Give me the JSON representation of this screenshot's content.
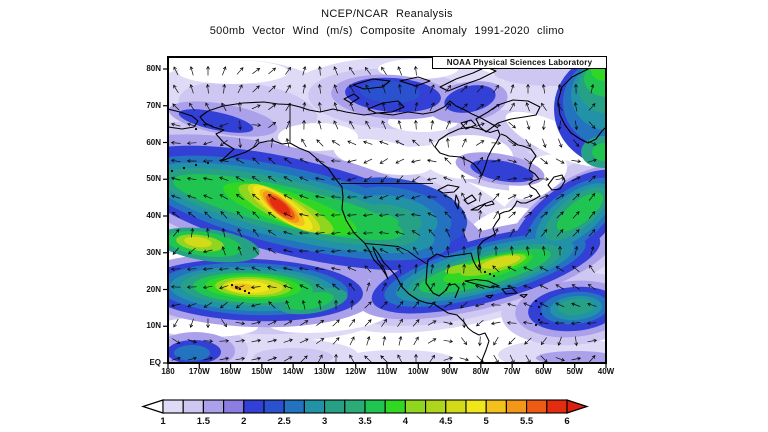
{
  "title": {
    "line1": "NCEP/NCAR Reanalysis",
    "line2": "500mb Vector Wind (m/s) Composite Anomaly 1991-2020 climo"
  },
  "watermark": "NOAA Physical Sciences Laboratory",
  "axes": {
    "lat_labels": [
      "80N",
      "70N",
      "60N",
      "50N",
      "40N",
      "30N",
      "20N",
      "10N",
      "EQ"
    ],
    "lon_labels": [
      "180",
      "170W",
      "160W",
      "150W",
      "140W",
      "130W",
      "120W",
      "110W",
      "100W",
      "90W",
      "80W",
      "70W",
      "60W",
      "50W",
      "40W"
    ]
  },
  "colorbar": {
    "tick_values": [
      "1",
      "1.5",
      "2",
      "2.5",
      "3",
      "3.5",
      "4",
      "4.5",
      "5",
      "5.5",
      "6"
    ],
    "cell_colors": [
      "#DFDBF6",
      "#CEC7F2",
      "#ABA0EA",
      "#8B7DE2",
      "#3340D6",
      "#2B52CE",
      "#2473C0",
      "#2292A6",
      "#27A186",
      "#2CAB79",
      "#1FC550",
      "#30D824",
      "#90D61E",
      "#ADD61C",
      "#D2DA1A",
      "#F0E61A",
      "#F3C11C",
      "#F2971A",
      "#ED5B15",
      "#E32D10"
    ],
    "left_arrow_color": "#FFFFFF",
    "right_arrow_color": "#DD1F0F",
    "outline_color": "#000000"
  },
  "chart_data": {
    "type": "heatmap",
    "subtype": "filled-contour-map-with-vectors",
    "title": "NCEP/NCAR Reanalysis",
    "variable": "500mb Vector Wind (m/s) Composite Anomaly",
    "climatology": "1991-2020 climo",
    "source_label": "NOAA Physical Sciences Laboratory",
    "lon_range": [
      "180",
      "40W"
    ],
    "lat_range": [
      "EQ",
      "~83N"
    ],
    "contour_levels_start": 1,
    "contour_levels_end": 6,
    "contour_interval": 0.25,
    "units": "m/s",
    "features": [
      {
        "name": "NE Pacific jet anomaly maximum",
        "lon": "143W",
        "lat": "42N",
        "approx_max": "6+"
      },
      {
        "name": "Subtropical Pacific maximum near Hawaii",
        "lon": "158W",
        "lat": "20N",
        "approx_max": "5.25"
      },
      {
        "name": "Far-west secondary maximum",
        "lon": "170W",
        "lat": "33N",
        "approx_max": "4.75"
      },
      {
        "name": "Gulf of Mexico / Bahamas band maximum",
        "lon": "75W",
        "lat": "28N",
        "approx_max": "4.75"
      },
      {
        "name": "US interior green-teal anomaly",
        "lon": "110W",
        "lat": "40N",
        "approx_max": "3.5"
      },
      {
        "name": "Greenland-edge green band",
        "lon": "42W",
        "lat": "75N",
        "approx_max": "4"
      },
      {
        "name": "NW Atlantic SW-NE green band",
        "lon": "50W",
        "lat": "38N",
        "approx_max": "3.5"
      },
      {
        "name": "Venezuela / tropical Atlantic blob",
        "lon": "62W",
        "lat": "12N",
        "approx_max": "3.25"
      }
    ]
  },
  "map_geometry": {
    "whites": [
      [
        65,
        15,
        55,
        12,
        0
      ],
      [
        250,
        12,
        40,
        10,
        0
      ],
      [
        255,
        65,
        35,
        10,
        0
      ],
      [
        300,
        100,
        45,
        22,
        0
      ],
      [
        388,
        82,
        55,
        16,
        25
      ],
      [
        150,
        80,
        40,
        14,
        0
      ],
      [
        215,
        100,
        50,
        16,
        10
      ],
      [
        60,
        205,
        75,
        10,
        3
      ],
      [
        160,
        262,
        60,
        13,
        -5
      ],
      [
        40,
        270,
        50,
        10,
        0
      ],
      [
        335,
        175,
        40,
        22,
        -20
      ],
      [
        268,
        195,
        28,
        12,
        -5
      ],
      [
        370,
        120,
        32,
        18,
        -30
      ]
    ],
    "blobs": [
      [
        70,
        45,
        95,
        42,
        0,
        0
      ],
      [
        230,
        45,
        120,
        45,
        0,
        0
      ],
      [
        390,
        55,
        70,
        50,
        0,
        0
      ],
      [
        134,
        150,
        242,
        84,
        14,
        0
      ],
      [
        85,
        233,
        155,
        52,
        2,
        0
      ],
      [
        320,
        210,
        165,
        52,
        -15,
        0
      ],
      [
        395,
        170,
        105,
        55,
        -38,
        0
      ],
      [
        120,
        298,
        70,
        16,
        0,
        0
      ],
      [
        230,
        302,
        55,
        9,
        0,
        0
      ],
      [
        400,
        298,
        70,
        16,
        0,
        0
      ],
      [
        80,
        52,
        70,
        26,
        8,
        1
      ],
      [
        225,
        42,
        85,
        30,
        3,
        1
      ],
      [
        335,
        75,
        55,
        22,
        0,
        1
      ],
      [
        385,
        15,
        60,
        14,
        0,
        1
      ],
      [
        132,
        151,
        218,
        70,
        14,
        1
      ],
      [
        85,
        233,
        140,
        44,
        2,
        1
      ],
      [
        319,
        211,
        148,
        45,
        -15,
        1
      ],
      [
        398,
        167,
        95,
        48,
        -38,
        1
      ],
      [
        330,
        110,
        60,
        22,
        10,
        1
      ],
      [
        405,
        252,
        72,
        36,
        -5,
        1
      ],
      [
        28,
        293,
        52,
        26,
        0,
        1
      ],
      [
        125,
        300,
        40,
        9,
        0,
        1
      ],
      [
        55,
        62,
        55,
        15,
        10,
        2
      ],
      [
        225,
        40,
        62,
        22,
        4,
        2
      ],
      [
        300,
        45,
        40,
        20,
        -10,
        2
      ],
      [
        130,
        151,
        196,
        58,
        14,
        2
      ],
      [
        85,
        233,
        125,
        37,
        2,
        2
      ],
      [
        318,
        212,
        133,
        38,
        -15,
        2
      ],
      [
        402,
        166,
        80,
        38,
        -38,
        2
      ],
      [
        332,
        112,
        45,
        15,
        10,
        2
      ],
      [
        405,
        252,
        58,
        28,
        -5,
        2
      ],
      [
        27,
        294,
        40,
        19,
        0,
        2
      ],
      [
        408,
        301,
        40,
        7,
        0,
        2
      ],
      [
        225,
        38,
        48,
        17,
        4,
        4
      ],
      [
        48,
        64,
        38,
        9,
        12,
        4
      ],
      [
        302,
        42,
        26,
        13,
        -12,
        4
      ],
      [
        128,
        151,
        177,
        48,
        13.5,
        4
      ],
      [
        85,
        233,
        110,
        31,
        2,
        4
      ],
      [
        318,
        213,
        118,
        32,
        -15,
        4
      ],
      [
        402,
        163,
        70,
        33,
        -38,
        4
      ],
      [
        334,
        114,
        32,
        10,
        10,
        4
      ],
      [
        406,
        252,
        46,
        22,
        -5,
        4
      ],
      [
        26,
        295,
        27,
        12,
        0,
        4
      ],
      [
        448,
        52,
        62,
        58,
        0,
        4
      ],
      [
        222,
        35,
        30,
        11,
        4,
        5
      ],
      [
        230,
        156,
        70,
        34,
        10,
        5
      ],
      [
        126,
        151,
        160,
        39,
        13,
        6
      ],
      [
        85,
        232,
        95,
        26,
        2,
        6
      ],
      [
        317,
        213,
        104,
        26,
        -15,
        6
      ],
      [
        404,
        161,
        56,
        26,
        -38,
        6
      ],
      [
        228,
        158,
        56,
        27,
        10,
        6
      ],
      [
        407,
        251,
        34,
        16,
        -5,
        6
      ],
      [
        445,
        45,
        50,
        46,
        0,
        6
      ],
      [
        24,
        296,
        18,
        8,
        0,
        6
      ],
      [
        124,
        151,
        146,
        32,
        13,
        7
      ],
      [
        85,
        232,
        83,
        22,
        2,
        7
      ],
      [
        317,
        213,
        92,
        22,
        -15,
        7
      ],
      [
        406,
        159,
        46,
        21,
        -38,
        7
      ],
      [
        226,
        160,
        44,
        21,
        10,
        7
      ],
      [
        408,
        251,
        26,
        12,
        -5,
        7
      ],
      [
        443,
        38,
        40,
        36,
        0,
        7
      ],
      [
        122,
        150,
        132,
        26,
        13,
        8
      ],
      [
        85,
        231,
        72,
        18,
        2,
        8
      ],
      [
        317,
        214,
        80,
        18,
        -15,
        8
      ],
      [
        408,
        157,
        38,
        16,
        -38,
        8
      ],
      [
        222,
        162,
        32,
        14,
        10,
        8
      ],
      [
        408,
        250,
        18,
        8,
        -5,
        8
      ],
      [
        442,
        30,
        32,
        27,
        0,
        8
      ],
      [
        435,
        95,
        22,
        16,
        0,
        8
      ],
      [
        40,
        188,
        52,
        16,
        8,
        8
      ],
      [
        145,
        244,
        35,
        12,
        -10,
        8
      ],
      [
        120,
        150,
        118,
        20,
        13,
        10
      ],
      [
        85,
        231,
        60,
        15,
        2,
        10
      ],
      [
        317,
        214,
        68,
        14,
        -15,
        10
      ],
      [
        412,
        155,
        28,
        11,
        -38,
        10
      ],
      [
        215,
        163,
        16,
        6,
        10,
        10
      ],
      [
        440,
        22,
        24,
        18,
        0,
        10
      ],
      [
        437,
        95,
        13,
        9,
        0,
        10
      ],
      [
        36,
        187,
        38,
        12,
        8,
        10
      ],
      [
        142,
        244,
        24,
        8,
        -10,
        10
      ],
      [
        122,
        152,
        70,
        16,
        18,
        11
      ],
      [
        85,
        230,
        48,
        12,
        2,
        11
      ],
      [
        320,
        211,
        46,
        10,
        -15,
        11
      ],
      [
        438,
        14,
        15,
        10,
        0,
        11
      ],
      [
        118,
        152,
        52,
        13,
        25,
        12
      ],
      [
        85,
        230,
        38,
        10,
        2,
        12
      ],
      [
        325,
        208,
        34,
        7.5,
        -14,
        12
      ],
      [
        32,
        186,
        24,
        8,
        8,
        12
      ],
      [
        290,
        212,
        13,
        4,
        -12,
        12
      ],
      [
        116,
        151,
        42,
        11.5,
        32,
        14
      ],
      [
        85,
        230,
        30,
        8,
        2,
        14
      ],
      [
        333,
        205,
        20,
        5,
        -13,
        14
      ],
      [
        30,
        185,
        14,
        5,
        8,
        14
      ],
      [
        115,
        151,
        36,
        10,
        36,
        15
      ],
      [
        80,
        230,
        22,
        6,
        2,
        15
      ],
      [
        114,
        150.5,
        28,
        8.5,
        38,
        16
      ],
      [
        74,
        230,
        12,
        3.5,
        2,
        16
      ],
      [
        113,
        150,
        23,
        7.5,
        40,
        17
      ],
      [
        112.5,
        150,
        18,
        6.5,
        40,
        18
      ],
      [
        112,
        149.5,
        13,
        5,
        40,
        19
      ]
    ],
    "coastlines": [
      "M 37,66 L 45,70 L 56,73 L 48,77 L 56,86 L 66,92 L 53,104 L 64,100 L 78,95 L 88,89 L 91,86 L 100,84 L 106,84 L 114,87 L 122,86 L 131,91 L 141,95 L 148,101 L 153,106 L 160,111 L 167,121 L 174,130 L 175,140 L 174,152 L 178,163 L 186,176 L 196.5,186 L 201,193 L 206,203 L 212,209 L 218,218 L 220,222 L 216,212 L 210,203 L 206,194 L 205,190 L 210,196 L 216,206 L 222,212 L 228,219 L 234,230 L 241,237 L 250,243 L 259,246 L 266,247 L 272,251 L 280,256 L 289,258 L 296,265 L 300,271 L 305,275 L 311,278 L 317,276 L 321,284 L 318,293 L 314,303 L 313,306",
      "M 37,66 L 32,60 L 40,54 L 55,49 L 75,46",
      "M 75,46 L 96,45 L 110,47 L 122,47.5 L 132,50 L 141,53 L 152,55 L 165,52 L 178,55 L 196,58 L 210,56 L 225,58 L 240,55 L 255,57 L 266,55 L 276,50 L 282,44 L 288,49 L 295,52 L 304,57 L 313,61 L 322,66 L 330,71",
      "M 330,73 L 322,75.5 L 312,72 L 302,70 L 291,72 L 280,77 L 271,83 L 267,90 L 272,96 L 281,99 L 292,100 L 301,104 L 306,107 L 311,113 L 314,118 L 317,110 L 320,100 L 324,92 L 329,84 L 332,78 Z",
      "M 287,241 L 291,231 L 287,227 L 281,228 L 277,234 L 271,239 L 265,236 L 258,226 L 259,211 L 260,203 L 269,197 L 277,200 L 284,199 L 291,198 L 297,197 L 303,196 L 305,203 L 308,209 L 311,213 L 312.5,211 L 311,203 L 310,196 L 310,190 L 315,184 L 322,180 L 327,177 L 325,171 L 328,166 L 331.6,161 L 331.6,157 L 336,155 L 341,154 L 344,152 L 347,148 L 349,144 L 353,146 L 358,146 L 365,143 L 372,139 L 368,133 L 363,130 L 361,127 L 365,124 L 371,122 L 367,117 L 361,113 L 363,106 L 368,99 L 363,92 L 355,89 L 350,88 L 344,84 L 338,79 L 333,77",
      "M 380,128 L 386,120 L 394,118 L 397,124 L 392,132 L 384,133 Z",
      "M 318,75 L 330,66 L 343,62 L 356,60 L 368,58 L 372,50 L 360,44 L 345,43 L 330,48 L 320,55 L 308,62 L 312,70 Z",
      "M 200,52 L 215,46 L 230,44 L 236,50 L 224,55 L 208,56 Z",
      "M 176,42 L 186,37 L 191,41 L 183,46 Z",
      "M 185,28 L 205,22 L 222,24 L 214,30 L 196,32 Z",
      "M 232,24 L 250,20 L 262,24 L 248,29 Z",
      "M 272,30 L 288,22 L 305,16 L 318,10 L 328,14 L 312,22 L 295,28 L 280,34 Z",
      "M 293,66 L 303,63 L 308,68 L 298,72 Z",
      "M 438,6 L 420,12 L 404,20 L 394,30 L 390,44 L 392,58 L 397,68 L 403,76 L 412,82 L 420,86 L 428,82 L 434,74 L 438,70",
      "M 270,133 L 280,128 L 291,130 L 286,135 L 275,136 Z",
      "M 288,138 L 291,145 L 290,152 L 287,146 Z",
      "M 296,143 L 304,138 L 308,143 L 300,147 Z",
      "M 303,153 L 311,149 L 317,147 L 310,153 Z",
      "M 316,147 L 324,144 L 326,147 L 318,149 Z",
      "M 297,224 L 308,222.5 L 320,224 L 331,229 L 322,230.5 L 308,227 Z",
      "M 334,232 L 344,231 L 349,236 L 338,237 Z",
      "M 318,239 L 325,238 L 322,241 Z",
      "M 352,238 L 359,237.5 L 356,240.5 Z",
      "M 0,52 L 12,55 L 24,59 L 30,64 L 26,70 L 14,72 L 0,70"
    ],
    "borders": [
      "M 173,126.4 L 265,126.4",
      "M 122,47.5 L 122,86",
      "M 197,186.5 L 215,188 L 230,189.5 L 240,194 L 248,200 L 259,207"
    ],
    "island_dots": [
      [
        64,
        228
      ],
      [
        68,
        230
      ],
      [
        72,
        232
      ],
      [
        77,
        234
      ],
      [
        81,
        236
      ],
      [
        4,
        114
      ],
      [
        16,
        111
      ],
      [
        28,
        108
      ],
      [
        40,
        106
      ],
      [
        28,
        72
      ],
      [
        368,
        244
      ],
      [
        371,
        250
      ],
      [
        373,
        257
      ],
      [
        371,
        263
      ],
      [
        368,
        268
      ],
      [
        317,
        215
      ],
      [
        322,
        217
      ],
      [
        326,
        219
      ]
    ]
  },
  "arrows": {
    "description": "wind anomaly vector arrows",
    "color": "#0A0A0A",
    "grid_dx": 16,
    "grid_dy": 18,
    "length": 9
  }
}
